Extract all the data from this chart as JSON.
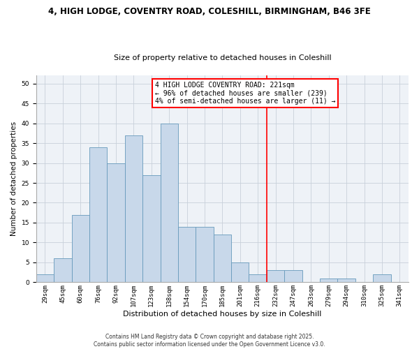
{
  "title1": "4, HIGH LODGE, COVENTRY ROAD, COLESHILL, BIRMINGHAM, B46 3FE",
  "title2": "Size of property relative to detached houses in Coleshill",
  "xlabel": "Distribution of detached houses by size in Coleshill",
  "ylabel": "Number of detached properties",
  "bar_labels": [
    "29sqm",
    "45sqm",
    "60sqm",
    "76sqm",
    "92sqm",
    "107sqm",
    "123sqm",
    "138sqm",
    "154sqm",
    "170sqm",
    "185sqm",
    "201sqm",
    "216sqm",
    "232sqm",
    "247sqm",
    "263sqm",
    "279sqm",
    "294sqm",
    "310sqm",
    "325sqm",
    "341sqm"
  ],
  "bar_values": [
    2,
    6,
    17,
    34,
    30,
    37,
    27,
    40,
    14,
    14,
    12,
    5,
    2,
    3,
    3,
    0,
    1,
    1,
    0,
    2,
    0
  ],
  "bar_color": "#c8d8ea",
  "bar_edge_color": "#6699bb",
  "vline_x": 12.5,
  "vline_color": "red",
  "ylim": [
    0,
    52
  ],
  "yticks": [
    0,
    5,
    10,
    15,
    20,
    25,
    30,
    35,
    40,
    45,
    50
  ],
  "annotation_title": "4 HIGH LODGE COVENTRY ROAD: 221sqm",
  "annotation_line1": "← 96% of detached houses are smaller (239)",
  "annotation_line2": "4% of semi-detached houses are larger (11) →",
  "footer1": "Contains HM Land Registry data © Crown copyright and database right 2025.",
  "footer2": "Contains public sector information licensed under the Open Government Licence v3.0.",
  "bg_color": "#eef2f7",
  "grid_color": "#c8d0da",
  "title1_fontsize": 8.5,
  "title2_fontsize": 8.0,
  "xlabel_fontsize": 8.0,
  "ylabel_fontsize": 7.5,
  "tick_fontsize": 6.5,
  "ann_fontsize": 7.0,
  "footer_fontsize": 5.5
}
